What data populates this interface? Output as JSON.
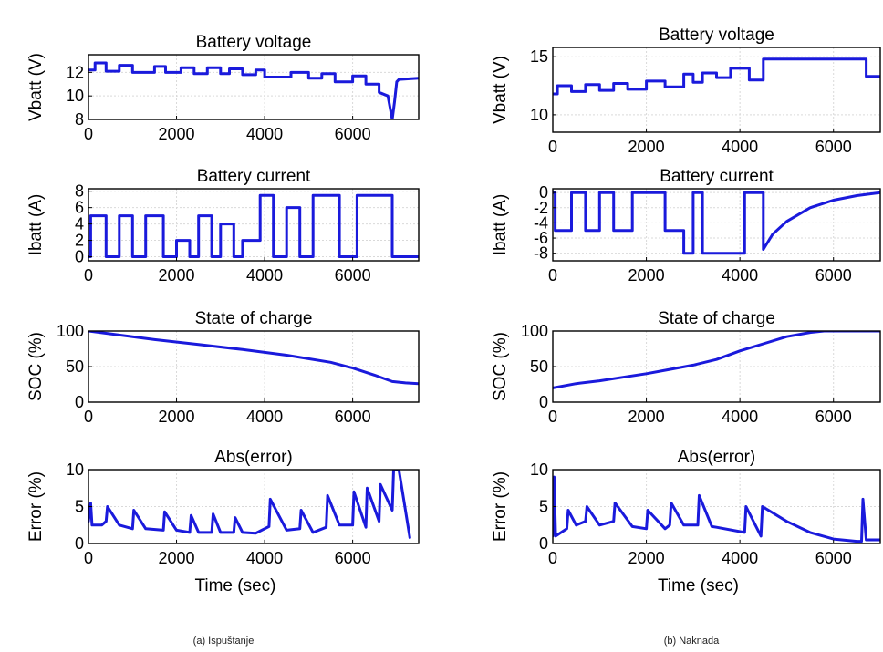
{
  "colors": {
    "line": "#1a1adc",
    "line_dark": "#101050"
  },
  "captions": {
    "left": "(a) Ispuštanje",
    "right": "(b) Naknada"
  },
  "chart_data": [
    {
      "type": "line",
      "id": "a-voltage",
      "title": "Battery voltage",
      "ylabel": "Vbatt (V)",
      "xlabel": "",
      "xlim": [
        0,
        7500
      ],
      "ylim": [
        8,
        13.5
      ],
      "xticks": [
        0,
        2000,
        4000,
        6000
      ],
      "yticks": [
        8,
        10,
        12
      ],
      "ytick_labels": [
        "8",
        "10",
        "12"
      ],
      "series": [
        {
          "x": [
            0,
            150,
            150,
            400,
            400,
            700,
            700,
            1000,
            1000,
            1500,
            1500,
            1750,
            1750,
            2100,
            2100,
            2400,
            2400,
            2700,
            2700,
            3000,
            3000,
            3200,
            3200,
            3500,
            3500,
            3800,
            3800,
            4000,
            4000,
            4600,
            4600,
            5000,
            5000,
            5300,
            5300,
            5600,
            5600,
            6000,
            6000,
            6300,
            6300,
            6600,
            6600,
            6800,
            6850,
            6900,
            6950,
            7000,
            7050,
            7500
          ],
          "y": [
            12.2,
            12.2,
            12.8,
            12.8,
            12.1,
            12.1,
            12.6,
            12.6,
            12.0,
            12.0,
            12.5,
            12.5,
            12.0,
            12.0,
            12.4,
            12.4,
            11.9,
            11.9,
            12.4,
            12.4,
            11.9,
            11.9,
            12.3,
            12.3,
            11.8,
            11.8,
            12.2,
            12.2,
            11.6,
            11.6,
            12.0,
            12.0,
            11.5,
            11.5,
            11.9,
            11.9,
            11.2,
            11.2,
            11.7,
            11.7,
            11.0,
            11.0,
            10.3,
            10.0,
            9.0,
            8.0,
            9.5,
            11.2,
            11.4,
            11.5
          ]
        }
      ]
    },
    {
      "type": "line",
      "id": "a-current",
      "title": "Battery current",
      "ylabel": "Ibatt (A)",
      "xlabel": "",
      "xlim": [
        0,
        7500
      ],
      "ylim": [
        -0.5,
        8.3
      ],
      "xticks": [
        0,
        2000,
        4000,
        6000
      ],
      "yticks": [
        0,
        2,
        4,
        6,
        8
      ],
      "ytick_labels": [
        "0",
        "2",
        "4",
        "6",
        "8"
      ],
      "series": [
        {
          "x": [
            0,
            50,
            50,
            400,
            400,
            700,
            700,
            1000,
            1000,
            1300,
            1300,
            1700,
            1700,
            2000,
            2000,
            2300,
            2300,
            2500,
            2500,
            2800,
            2800,
            3000,
            3000,
            3300,
            3300,
            3500,
            3500,
            3900,
            3900,
            4200,
            4200,
            4500,
            4500,
            4800,
            4800,
            5100,
            5100,
            5700,
            5700,
            6100,
            6100,
            6900,
            6900,
            7500
          ],
          "y": [
            0,
            0,
            5,
            5,
            0,
            0,
            5,
            5,
            0,
            0,
            5,
            5,
            0,
            0,
            2,
            2,
            0,
            0,
            5,
            5,
            0,
            0,
            4,
            4,
            0,
            0,
            2,
            2,
            7.5,
            7.5,
            0,
            0,
            6,
            6,
            0,
            0,
            7.5,
            7.5,
            0,
            0,
            7.5,
            7.5,
            0,
            0
          ]
        }
      ]
    },
    {
      "type": "line",
      "id": "a-soc",
      "title": "State of charge",
      "ylabel": "SOC (%)",
      "xlabel": "",
      "xlim": [
        0,
        7500
      ],
      "ylim": [
        0,
        100
      ],
      "xticks": [
        0,
        2000,
        4000,
        6000
      ],
      "yticks": [
        0,
        50,
        100
      ],
      "ytick_labels": [
        "0",
        "50",
        "100"
      ],
      "series": [
        {
          "x": [
            0,
            500,
            1500,
            2500,
            3500,
            4500,
            5500,
            6000,
            6500,
            6900,
            7200,
            7500
          ],
          "y": [
            100,
            96,
            88,
            81,
            74,
            66,
            56,
            48,
            38,
            29,
            27,
            26
          ]
        }
      ]
    },
    {
      "type": "line",
      "id": "a-error",
      "title": "Abs(error)",
      "ylabel": "Error (%)",
      "xlabel": "Time (sec)",
      "xlim": [
        0,
        7500
      ],
      "ylim": [
        0,
        10
      ],
      "xticks": [
        0,
        2000,
        4000,
        6000
      ],
      "yticks": [
        0,
        5,
        10
      ],
      "ytick_labels": [
        "0",
        "5",
        "10"
      ],
      "series": [
        {
          "x": [
            0,
            50,
            80,
            300,
            400,
            430,
            700,
            1000,
            1030,
            1300,
            1700,
            1730,
            2000,
            2300,
            2330,
            2500,
            2800,
            2830,
            3000,
            3300,
            3330,
            3500,
            3800,
            4100,
            4130,
            4500,
            4800,
            4830,
            5100,
            5400,
            5430,
            5700,
            6000,
            6030,
            6300,
            6330,
            6600,
            6630,
            6900,
            6930,
            7050,
            7300
          ],
          "y": [
            3,
            5.5,
            2.5,
            2.5,
            3,
            5,
            2.5,
            2,
            4.5,
            2,
            1.8,
            4.3,
            1.8,
            1.5,
            3.8,
            1.5,
            1.5,
            4,
            1.5,
            1.5,
            3.5,
            1.5,
            1.4,
            2.3,
            6,
            1.8,
            2,
            4.5,
            1.5,
            2.2,
            6.5,
            2.5,
            2.5,
            7,
            2.2,
            7.5,
            3,
            8,
            4.5,
            10,
            10,
            0.8
          ]
        }
      ]
    },
    {
      "type": "line",
      "id": "b-voltage",
      "title": "Battery voltage",
      "ylabel": "Vbatt (V)",
      "xlabel": "",
      "xlim": [
        0,
        7000
      ],
      "ylim": [
        8.5,
        15.8
      ],
      "xticks": [
        0,
        2000,
        4000,
        6000
      ],
      "yticks": [
        10,
        15
      ],
      "ytick_labels": [
        "10",
        "15"
      ],
      "series": [
        {
          "x": [
            0,
            100,
            100,
            400,
            400,
            700,
            700,
            1000,
            1000,
            1300,
            1300,
            1600,
            1600,
            2000,
            2000,
            2400,
            2400,
            2800,
            2800,
            3000,
            3000,
            3200,
            3200,
            3500,
            3500,
            3800,
            3800,
            4200,
            4200,
            4500,
            4500,
            6700,
            6700,
            7000
          ],
          "y": [
            11.8,
            11.8,
            12.5,
            12.5,
            12.0,
            12.0,
            12.6,
            12.6,
            12.1,
            12.1,
            12.7,
            12.7,
            12.2,
            12.2,
            12.9,
            12.9,
            12.4,
            12.4,
            13.5,
            13.5,
            12.8,
            12.8,
            13.6,
            13.6,
            13.2,
            13.2,
            14.0,
            14.0,
            13.0,
            13.0,
            14.8,
            14.8,
            13.3,
            13.3
          ]
        }
      ]
    },
    {
      "type": "line",
      "id": "b-current",
      "title": "Battery current",
      "ylabel": "Ibatt (A)",
      "xlabel": "",
      "xlim": [
        0,
        7000
      ],
      "ylim": [
        -9,
        0.5
      ],
      "xticks": [
        0,
        2000,
        4000,
        6000
      ],
      "yticks": [
        0,
        -2,
        -4,
        -6,
        -8
      ],
      "ytick_labels": [
        "0",
        "-2",
        "-4",
        "-6",
        "-8"
      ],
      "series": [
        {
          "x": [
            0,
            50,
            50,
            400,
            400,
            700,
            700,
            1000,
            1000,
            1300,
            1300,
            1700,
            1700,
            2400,
            2400,
            2800,
            2800,
            3000,
            3000,
            3200,
            3200,
            3500,
            3500,
            4100,
            4100,
            4200,
            4200,
            4500,
            4500,
            4700,
            5000,
            5500,
            6000,
            6500,
            7000
          ],
          "y": [
            0,
            0,
            -5,
            -5,
            0,
            0,
            -5,
            -5,
            0,
            0,
            -5,
            -5,
            0,
            0,
            -5,
            -5,
            -8,
            -8,
            0,
            0,
            -8,
            -8,
            -8,
            -8,
            0,
            0,
            0,
            0,
            -7.5,
            -5.5,
            -3.8,
            -2.0,
            -1.0,
            -0.4,
            0
          ]
        }
      ]
    },
    {
      "type": "line",
      "id": "b-soc",
      "title": "State of charge",
      "ylabel": "SOC (%)",
      "xlabel": "",
      "xlim": [
        0,
        7000
      ],
      "ylim": [
        0,
        100
      ],
      "xticks": [
        0,
        2000,
        4000,
        6000
      ],
      "yticks": [
        0,
        50,
        100
      ],
      "ytick_labels": [
        "0",
        "50",
        "100"
      ],
      "series": [
        {
          "x": [
            0,
            500,
            1000,
            1500,
            2000,
            2500,
            3000,
            3500,
            4000,
            4500,
            5000,
            5500,
            5800,
            6500,
            7000
          ],
          "y": [
            20,
            26,
            30,
            35,
            40,
            46,
            52,
            60,
            72,
            82,
            92,
            98,
            100,
            100,
            100
          ]
        }
      ]
    },
    {
      "type": "line",
      "id": "b-error",
      "title": "Abs(error)",
      "ylabel": "Error (%)",
      "xlabel": "Time (sec)",
      "xlim": [
        0,
        7000
      ],
      "ylim": [
        0,
        10
      ],
      "xticks": [
        0,
        2000,
        4000,
        6000
      ],
      "yticks": [
        0,
        5,
        10
      ],
      "ytick_labels": [
        "0",
        "5",
        "10"
      ],
      "series": [
        {
          "x": [
            0,
            30,
            60,
            300,
            330,
            500,
            700,
            730,
            1000,
            1300,
            1330,
            1700,
            2000,
            2030,
            2400,
            2500,
            2530,
            2800,
            3100,
            3130,
            3400,
            3500,
            4100,
            4130,
            4450,
            4480,
            5000,
            5500,
            6000,
            6500,
            6600,
            6630,
            6700,
            7000
          ],
          "y": [
            1,
            9,
            1,
            2,
            4.5,
            2.5,
            3,
            5,
            2.5,
            3,
            5.5,
            2.3,
            2,
            4.5,
            2,
            2.5,
            5.5,
            2.5,
            2.5,
            6.5,
            2.3,
            2.2,
            1.5,
            5,
            1,
            5,
            3,
            1.5,
            0.6,
            0.3,
            0.3,
            6,
            0.5,
            0.5
          ]
        }
      ]
    }
  ]
}
